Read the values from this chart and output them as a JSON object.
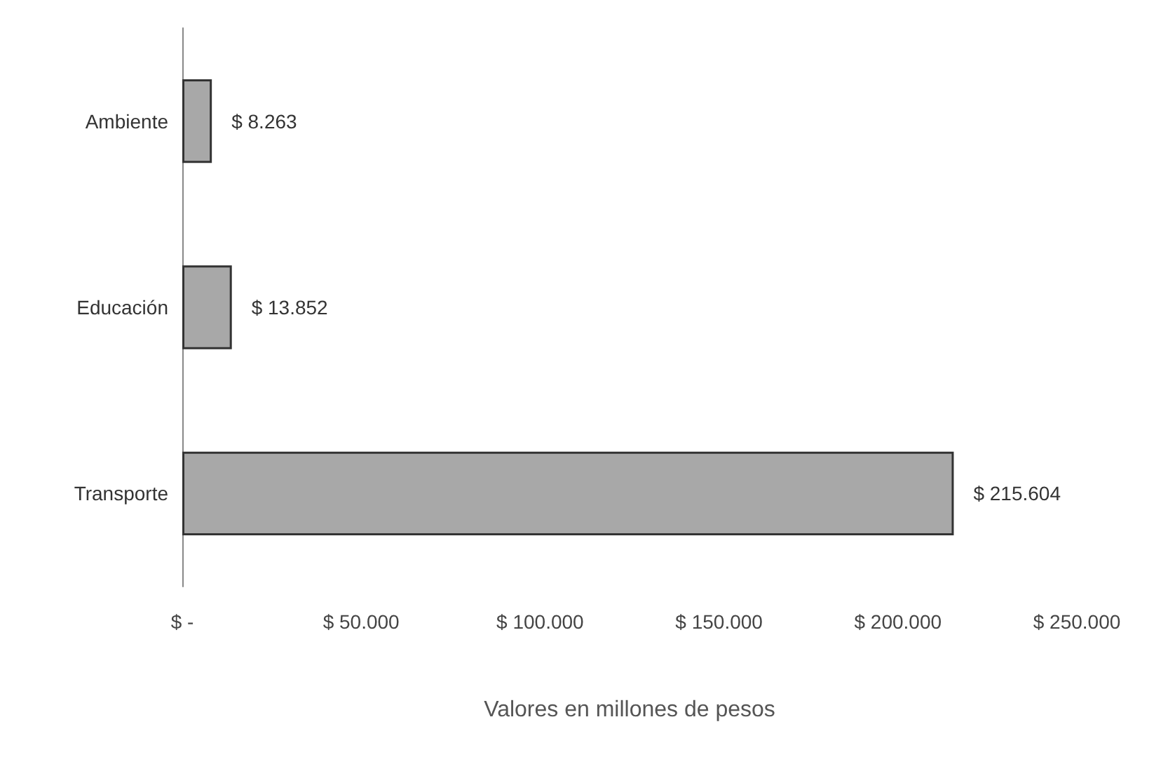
{
  "chart_data": {
    "type": "bar",
    "orientation": "horizontal",
    "categories": [
      "Ambiente",
      "Educación",
      "Transporte"
    ],
    "values": [
      8263,
      13852,
      215604
    ],
    "color": "#a8a8a8",
    "value_labels": [
      "$ 8.263",
      "$ 13.852",
      "$ 215.604"
    ],
    "xlabel": "Valores en millones de pesos",
    "xlim": [
      0,
      250000
    ],
    "xticks": [
      {
        "value": 0,
        "label": "$ -"
      },
      {
        "value": 50000,
        "label": "$ 50.000"
      },
      {
        "value": 100000,
        "label": "$ 100.000"
      },
      {
        "value": 150000,
        "label": "$ 150.000"
      },
      {
        "value": 200000,
        "label": "$ 200.000"
      },
      {
        "value": 250000,
        "label": "$ 250.000"
      }
    ],
    "grid": false
  }
}
